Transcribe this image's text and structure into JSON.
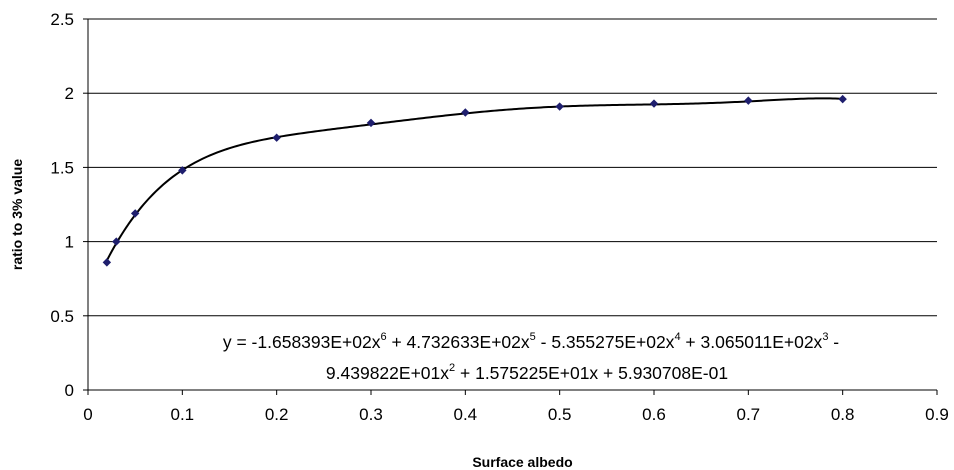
{
  "chart_data": {
    "type": "scatter",
    "title": "",
    "xlabel": "Surface albedo",
    "ylabel": "ratio to 3% value",
    "xlim": [
      0,
      0.9
    ],
    "ylim": [
      0,
      2.5
    ],
    "x_ticks": [
      0,
      0.1,
      0.2,
      0.3,
      0.4,
      0.5,
      0.6,
      0.7,
      0.8,
      0.9
    ],
    "y_ticks": [
      0,
      0.5,
      1,
      1.5,
      2,
      2.5
    ],
    "x_tick_labels": [
      "0",
      "0.1",
      "0.2",
      "0.3",
      "0.4",
      "0.5",
      "0.6",
      "0.7",
      "0.8",
      "0.9"
    ],
    "y_tick_labels": [
      "0",
      "0.5",
      "1",
      "1.5",
      "2",
      "2.5"
    ],
    "grid": "horizontal major gridlines",
    "legend": "none",
    "marker_color": "#1f1f6e",
    "trendline_color": "#000000",
    "series": [
      {
        "x": [
          0.02,
          0.03,
          0.05,
          0.1,
          0.2,
          0.3,
          0.4,
          0.5,
          0.6,
          0.7,
          0.8
        ],
        "y": [
          0.86,
          1.0,
          1.19,
          1.48,
          1.7,
          1.8,
          1.87,
          1.91,
          1.93,
          1.95,
          1.96
        ]
      }
    ],
    "trendline": {
      "type": "polynomial",
      "order": 6,
      "coefficients": [
        0.5930708,
        15.75225,
        -94.39822,
        306.5011,
        -535.5275,
        473.2633,
        -165.8393
      ],
      "x_range": [
        0.02,
        0.8
      ]
    },
    "annotation": {
      "line1": {
        "prefix": "y = -1.658393E+02x",
        "parts": [
          {
            "text": "6",
            "sup": true
          },
          {
            "text": " + 4.732633E+02x",
            "sup": false
          },
          {
            "text": "5",
            "sup": true
          },
          {
            "text": " - 5.355275E+02x",
            "sup": false
          },
          {
            "text": "4",
            "sup": true
          },
          {
            "text": " + 3.065011E+02x",
            "sup": false
          },
          {
            "text": "3",
            "sup": true
          },
          {
            "text": " -",
            "sup": false
          }
        ]
      },
      "line2": {
        "prefix": "9.439822E+01x",
        "parts": [
          {
            "text": "2",
            "sup": true
          },
          {
            "text": " + 1.575225E+01x + 5.930708E-01",
            "sup": false
          }
        ]
      }
    }
  }
}
